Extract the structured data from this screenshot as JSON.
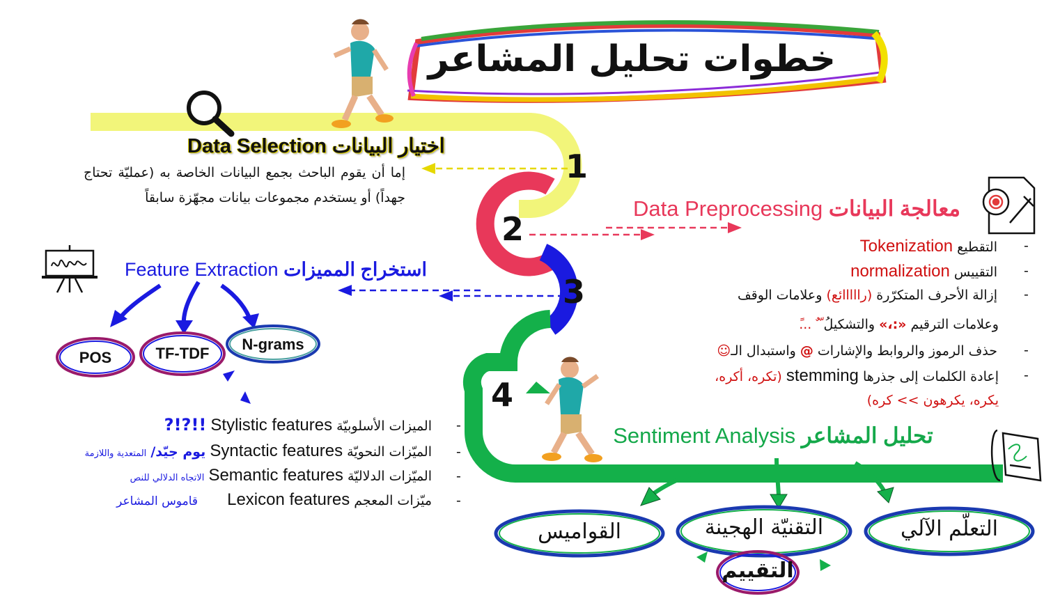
{
  "title": "خطوات تحليل المشاعر",
  "steps": {
    "s1": {
      "number": "1",
      "heading_ar": "اختيار البيانات",
      "heading_en": "Data Selection",
      "description": "إما أن يقوم الباحث بجمع البيانات الخاصة به (عمليّة تحتاج جهداً) أو يستخدم مجموعات بيانات مجهّزة سابقاً"
    },
    "s2": {
      "number": "2",
      "heading_ar": "معالجة البيانات",
      "heading_en": "Data Preprocessing",
      "items": [
        {
          "dash": "-",
          "ar": "التقطيع",
          "en": "Tokenization"
        },
        {
          "dash": "-",
          "ar": "التقييس",
          "en": "normalization"
        },
        {
          "dash": "-",
          "a": "إزالة الأحرف المتكرّرة",
          "b": "(رااااائع)",
          "c": "وعلامات الوقف"
        },
        {
          "a": "وعلامات الترقيم",
          "b": "«:،»",
          "c": "والتشكيل",
          "d": "ُ ّ ٌ ...ً"
        },
        {
          "dash": "-",
          "a": "حذف الرموز والروابط والإشارات",
          "b": "@",
          "c": "واستبدال الـ",
          "d": "☺"
        },
        {
          "dash": "-",
          "a": "إعادة الكلمات إلى جذرها",
          "b": "stemming",
          "c": "(تكره، أكره،"
        },
        {
          "a": "يكره، يكرهون >> كره)"
        }
      ]
    },
    "s3": {
      "number": "3",
      "heading_ar": "استخراج المميزات",
      "heading_en": "Feature Extraction",
      "pills": [
        "POS",
        "TF-TDF",
        "N-grams"
      ],
      "items": [
        {
          "dash": "-",
          "ar": "الميزات الأسلوبيّة",
          "en": "Stylistic features",
          "example": "!!?!?"
        },
        {
          "dash": "-",
          "ar": "الميّزات النحويّة",
          "en": "Syntactic features",
          "example": "يوم جيّد/",
          "note": "المتعدية واللازمة"
        },
        {
          "dash": "-",
          "ar": "الميّزات الدلاليّة",
          "en": "Semantic features",
          "note": "الاتجاه الدلالي للنص"
        },
        {
          "dash": "-",
          "ar": "ميّزات المعجم",
          "en": "Lexicon features",
          "note": "قاموس المشاعر"
        }
      ]
    },
    "s4": {
      "number": "4",
      "heading_ar": "تحليل المشاعر",
      "heading_en": "Sentiment Analysis",
      "methods": [
        "القواميس",
        "التقنيّة الهجينة",
        "التعلّم الآلي"
      ],
      "evaluation": "التقييم"
    }
  },
  "colors": {
    "step1": "#f2f57a",
    "step2": "#e8385a",
    "step3": "#1a1ae0",
    "step4": "#14b04a",
    "accent_red": "#d01010"
  },
  "icons": [
    "magnifier-icon",
    "gear-document-icon",
    "presentation-board-icon",
    "scroll-document-icon",
    "walking-person-figure"
  ]
}
